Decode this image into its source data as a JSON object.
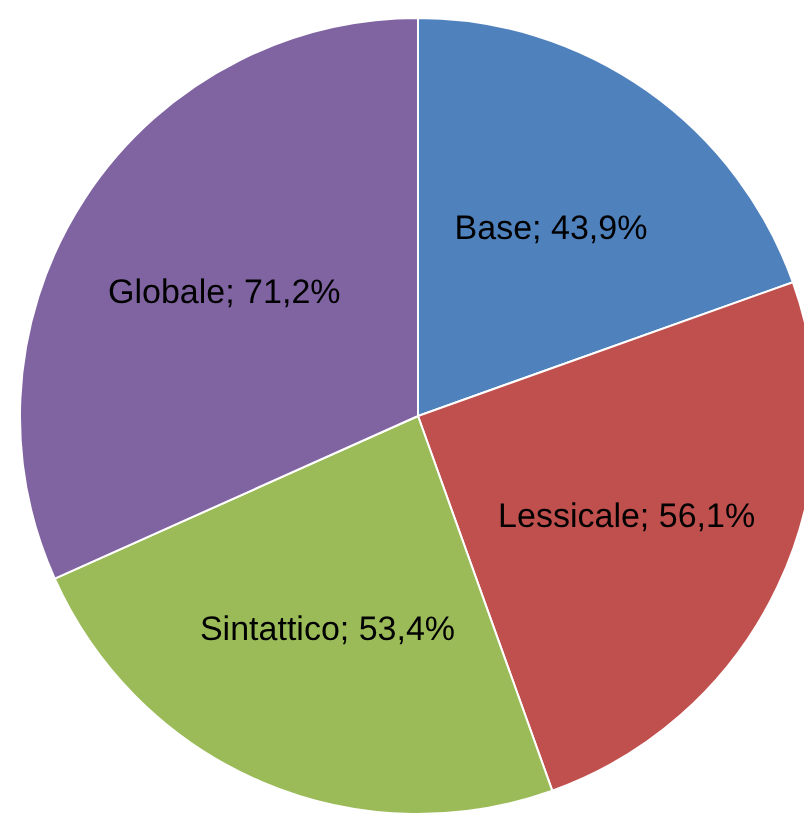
{
  "chart_data": {
    "type": "pie",
    "categories": [
      "Base",
      "Lessicale",
      "Sintattico",
      "Globale"
    ],
    "values": [
      43.9,
      56.1,
      53.4,
      71.2
    ],
    "value_labels": [
      "43,9%",
      "56,1%",
      "53,4%",
      "71,2%"
    ],
    "colors": [
      "#4f81bd",
      "#c0504d",
      "#9bbb59",
      "#8064a2"
    ],
    "legend": false
  }
}
